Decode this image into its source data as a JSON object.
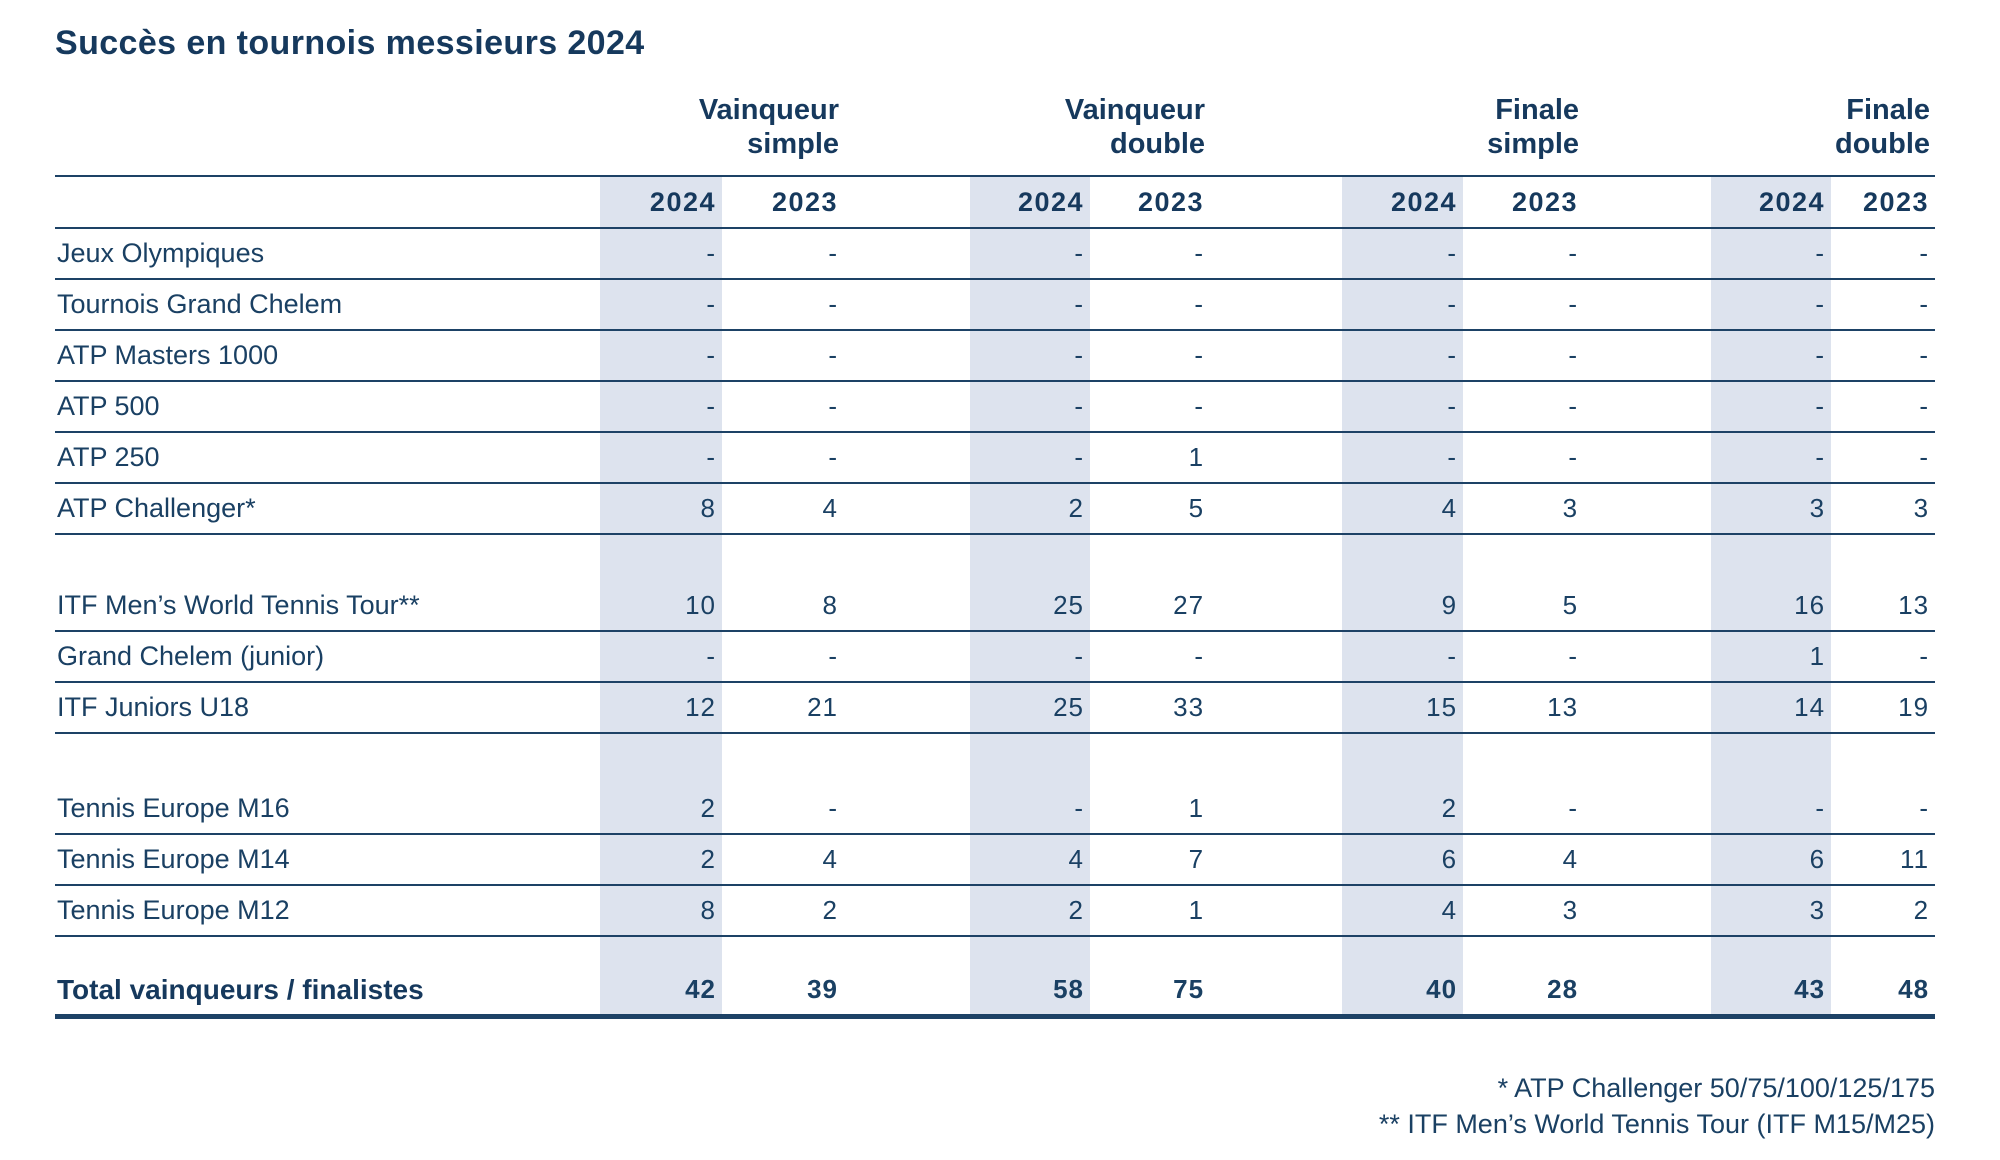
{
  "title": "Succès en tournois messieurs 2024",
  "colors": {
    "navy_text": "#16395d",
    "line_navy": "#1d4266",
    "column_shade": "#dde3ee"
  },
  "table": {
    "groups": [
      {
        "line1": "Vainqueur",
        "line2": "simple"
      },
      {
        "line1": "Vainqueur",
        "line2": "double"
      },
      {
        "line1": "Finale",
        "line2": "simple"
      },
      {
        "line1": "Finale",
        "line2": "double"
      }
    ],
    "year_headers": [
      "2024",
      "2023",
      "2024",
      "2023",
      "2024",
      "2023",
      "2024",
      "2023"
    ],
    "rows": [
      {
        "label": "Jeux Olympiques",
        "values": [
          "-",
          "-",
          "-",
          "-",
          "-",
          "-",
          "-",
          "-"
        ]
      },
      {
        "label": "Tournois Grand Chelem",
        "values": [
          "-",
          "-",
          "-",
          "-",
          "-",
          "-",
          "-",
          "-"
        ]
      },
      {
        "label": "ATP Masters 1000",
        "values": [
          "-",
          "-",
          "-",
          "-",
          "-",
          "-",
          "-",
          "-"
        ]
      },
      {
        "label": "ATP 500",
        "values": [
          "-",
          "-",
          "-",
          "-",
          "-",
          "-",
          "-",
          "-"
        ]
      },
      {
        "label": "ATP 250",
        "values": [
          "-",
          "-",
          "-",
          "1",
          "-",
          "-",
          "-",
          "-"
        ]
      },
      {
        "label": "ATP Challenger*",
        "values": [
          "8",
          "4",
          "2",
          "5",
          "4",
          "3",
          "3",
          "3"
        ]
      },
      {
        "spacer": true,
        "variant": "first"
      },
      {
        "label": "ITF Men’s World Tennis Tour**",
        "values": [
          "10",
          "8",
          "25",
          "27",
          "9",
          "5",
          "16",
          "13"
        ]
      },
      {
        "label": "Grand Chelem (junior)",
        "values": [
          "-",
          "-",
          "-",
          "-",
          "-",
          "-",
          "1",
          "-"
        ]
      },
      {
        "label": "ITF Juniors U18",
        "values": [
          "12",
          "21",
          "25",
          "33",
          "15",
          "13",
          "14",
          "19"
        ]
      },
      {
        "spacer": true
      },
      {
        "label": "Tennis Europe M16",
        "values": [
          "2",
          "-",
          "-",
          "1",
          "2",
          "-",
          "-",
          "-"
        ]
      },
      {
        "label": "Tennis Europe M14",
        "values": [
          "2",
          "4",
          "4",
          "7",
          "6",
          "4",
          "6",
          "11"
        ]
      },
      {
        "label": "Tennis Europe M12",
        "values": [
          "8",
          "2",
          "2",
          "1",
          "4",
          "3",
          "3",
          "2"
        ]
      },
      {
        "spacer": true,
        "variant": "small"
      },
      {
        "label": "Total vainqueurs / finalistes",
        "values": [
          "42",
          "39",
          "58",
          "75",
          "40",
          "28",
          "43",
          "48"
        ],
        "total": true
      }
    ],
    "footnotes": [
      "* ATP Challenger 50/75/100/125/175",
      "** ITF Men’s World Tennis Tour (ITF M15/M25)"
    ]
  },
  "chart_data": {
    "type": "table",
    "title": "Succès en tournois messieurs 2024",
    "column_groups": [
      "Vainqueur simple",
      "Vainqueur double",
      "Finale simple",
      "Finale double"
    ],
    "columns_per_group": [
      "2024",
      "2023"
    ],
    "rows": [
      {
        "label": "Jeux Olympiques",
        "vainqueur_simple": [
          "-",
          "-"
        ],
        "vainqueur_double": [
          "-",
          "-"
        ],
        "finale_simple": [
          "-",
          "-"
        ],
        "finale_double": [
          "-",
          "-"
        ]
      },
      {
        "label": "Tournois Grand Chelem",
        "vainqueur_simple": [
          "-",
          "-"
        ],
        "vainqueur_double": [
          "-",
          "-"
        ],
        "finale_simple": [
          "-",
          "-"
        ],
        "finale_double": [
          "-",
          "-"
        ]
      },
      {
        "label": "ATP Masters 1000",
        "vainqueur_simple": [
          "-",
          "-"
        ],
        "vainqueur_double": [
          "-",
          "-"
        ],
        "finale_simple": [
          "-",
          "-"
        ],
        "finale_double": [
          "-",
          "-"
        ]
      },
      {
        "label": "ATP 500",
        "vainqueur_simple": [
          "-",
          "-"
        ],
        "vainqueur_double": [
          "-",
          "-"
        ],
        "finale_simple": [
          "-",
          "-"
        ],
        "finale_double": [
          "-",
          "-"
        ]
      },
      {
        "label": "ATP 250",
        "vainqueur_simple": [
          "-",
          "-"
        ],
        "vainqueur_double": [
          "-",
          1
        ],
        "finale_simple": [
          "-",
          "-"
        ],
        "finale_double": [
          "-",
          "-"
        ]
      },
      {
        "label": "ATP Challenger*",
        "vainqueur_simple": [
          8,
          4
        ],
        "vainqueur_double": [
          2,
          5
        ],
        "finale_simple": [
          4,
          3
        ],
        "finale_double": [
          3,
          3
        ]
      },
      {
        "label": "ITF Men’s World Tennis Tour**",
        "vainqueur_simple": [
          10,
          8
        ],
        "vainqueur_double": [
          25,
          27
        ],
        "finale_simple": [
          9,
          5
        ],
        "finale_double": [
          16,
          13
        ]
      },
      {
        "label": "Grand Chelem (junior)",
        "vainqueur_simple": [
          "-",
          "-"
        ],
        "vainqueur_double": [
          "-",
          "-"
        ],
        "finale_simple": [
          "-",
          "-"
        ],
        "finale_double": [
          1,
          "-"
        ]
      },
      {
        "label": "ITF Juniors U18",
        "vainqueur_simple": [
          12,
          21
        ],
        "vainqueur_double": [
          25,
          33
        ],
        "finale_simple": [
          15,
          13
        ],
        "finale_double": [
          14,
          19
        ]
      },
      {
        "label": "Tennis Europe M16",
        "vainqueur_simple": [
          2,
          "-"
        ],
        "vainqueur_double": [
          "-",
          1
        ],
        "finale_simple": [
          2,
          "-"
        ],
        "finale_double": [
          "-",
          "-"
        ]
      },
      {
        "label": "Tennis Europe M14",
        "vainqueur_simple": [
          2,
          4
        ],
        "vainqueur_double": [
          4,
          7
        ],
        "finale_simple": [
          6,
          4
        ],
        "finale_double": [
          6,
          11
        ]
      },
      {
        "label": "Tennis Europe M12",
        "vainqueur_simple": [
          8,
          2
        ],
        "vainqueur_double": [
          2,
          1
        ],
        "finale_simple": [
          4,
          3
        ],
        "finale_double": [
          3,
          2
        ]
      },
      {
        "label": "Total vainqueurs / finalistes",
        "vainqueur_simple": [
          42,
          39
        ],
        "vainqueur_double": [
          58,
          75
        ],
        "finale_simple": [
          40,
          28
        ],
        "finale_double": [
          43,
          48
        ]
      }
    ]
  }
}
